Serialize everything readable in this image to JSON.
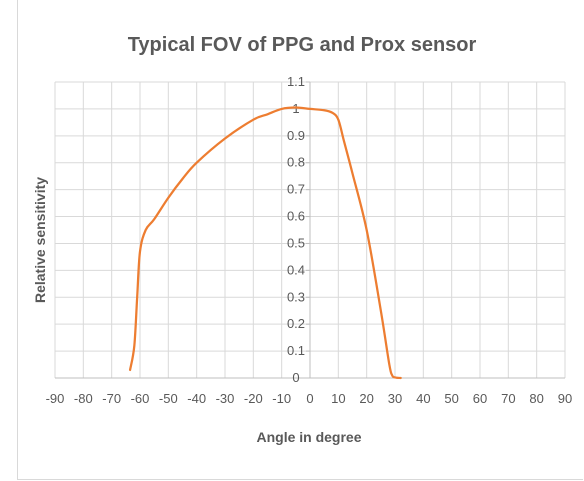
{
  "chart_data": {
    "type": "line",
    "title": "Typical FOV of PPG and Prox sensor",
    "xlabel": "Angle in degree",
    "ylabel": "Relative sensitivity",
    "xlim": [
      -90,
      90
    ],
    "ylim": [
      0,
      1.1
    ],
    "xticks": [
      -90,
      -80,
      -70,
      -60,
      -50,
      -40,
      -30,
      -20,
      -10,
      0,
      10,
      20,
      30,
      40,
      50,
      60,
      70,
      80,
      90
    ],
    "xtick_labels": [
      "-90",
      "-80",
      "-70",
      "-60",
      "-50",
      "-40",
      "-30",
      "-20",
      "-10",
      "0",
      "10",
      "20",
      "30",
      "40",
      "50",
      "60",
      "70",
      "80",
      "90"
    ],
    "yticks": [
      0,
      0.1,
      0.2,
      0.3,
      0.4,
      0.5,
      0.6,
      0.7,
      0.8,
      0.9,
      1,
      1.1
    ],
    "ytick_labels": [
      "0",
      "0.1",
      "0.2",
      "0.3",
      "0.4",
      "0.5",
      "0.6",
      "0.7",
      "0.8",
      "0.9",
      "1",
      "1.1"
    ],
    "grid": true,
    "y_axis_position": "x = 0",
    "series": [
      {
        "color": "#ed7d31",
        "x": [
          -63.5,
          -62,
          -61,
          -60,
          -58,
          -55,
          -50,
          -45,
          -40,
          -30,
          -20,
          -15,
          -10,
          -5,
          0,
          5,
          8,
          10,
          12,
          15,
          20,
          25,
          28,
          29,
          30,
          32
        ],
        "y": [
          0.03,
          0.12,
          0.3,
          0.47,
          0.55,
          0.59,
          0.67,
          0.74,
          0.8,
          0.89,
          0.96,
          0.98,
          1.0,
          1.005,
          1.0,
          0.995,
          0.985,
          0.96,
          0.88,
          0.76,
          0.55,
          0.25,
          0.05,
          0.01,
          0.002,
          0.0
        ]
      }
    ]
  }
}
